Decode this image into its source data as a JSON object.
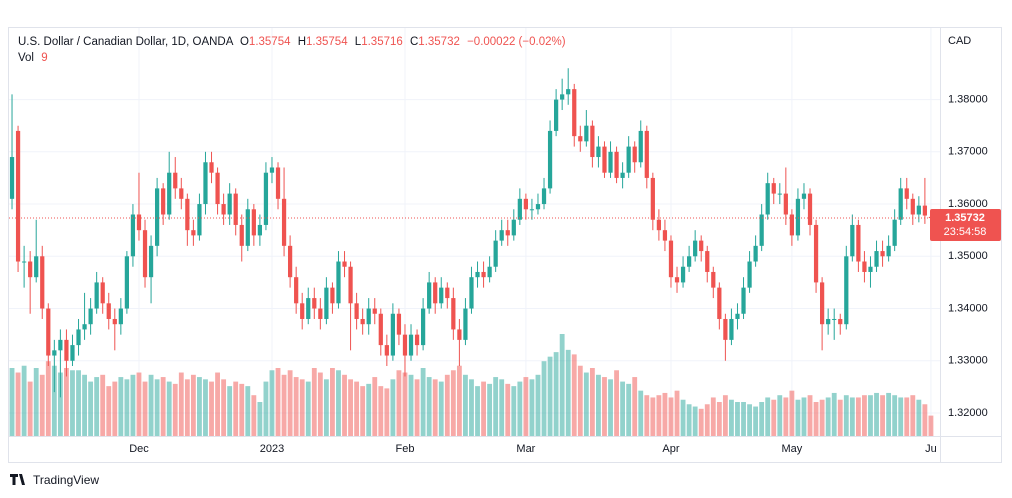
{
  "chart_data": {
    "type": "candlestick",
    "title": "U.S. Dollar / Canadian Dollar, 1D, OANDA",
    "ohlc_labels": [
      "O",
      "H",
      "L",
      "C"
    ],
    "change_text": "−0.00022 (−0.02%)",
    "volume_label": "Vol",
    "currency": "CAD",
    "countdown": "23:54:58",
    "brand": "TradingView",
    "up_color": "#26a69a",
    "down_color": "#ef5350",
    "open": [
      1.361,
      1.374,
      1.349,
      1.349,
      1.346,
      1.35,
      1.34,
      1.331,
      1.332,
      1.334,
      1.33,
      1.333,
      1.336,
      1.337,
      1.34,
      1.345,
      1.341,
      1.338,
      1.337,
      1.34,
      1.35,
      1.358,
      1.355,
      1.346,
      1.352,
      1.363,
      1.358,
      1.366,
      1.363,
      1.361,
      1.355,
      1.354,
      1.36,
      1.368,
      1.366,
      1.36,
      1.358,
      1.362,
      1.356,
      1.352,
      1.359,
      1.354,
      1.356,
      1.366,
      1.367,
      1.361,
      1.352,
      1.346,
      1.341,
      1.338,
      1.342,
      1.34,
      1.338,
      1.344,
      1.341,
      1.349,
      1.348,
      1.341,
      1.338,
      1.337,
      1.34,
      1.339,
      1.333,
      1.331,
      1.339,
      1.335,
      1.331,
      1.335,
      1.333,
      1.34,
      1.345,
      1.341,
      1.344,
      1.342,
      1.336,
      1.334,
      1.34,
      1.346,
      1.347,
      1.346,
      1.348,
      1.353,
      1.355,
      1.354,
      1.357,
      1.361,
      1.359,
      1.359,
      1.36,
      1.363,
      1.374,
      1.38,
      1.381,
      1.382,
      1.373,
      1.372,
      1.375,
      1.369,
      1.371,
      1.366,
      1.37,
      1.365,
      1.366,
      1.371,
      1.368,
      1.374,
      1.365,
      1.357,
      1.355,
      1.353,
      1.346,
      1.345,
      1.348,
      1.35,
      1.353,
      1.351,
      1.347,
      1.344,
      1.338,
      1.334,
      1.338,
      1.339,
      1.344,
      1.349,
      1.352,
      1.358,
      1.364,
      1.362,
      1.362,
      1.358,
      1.354,
      1.361,
      1.362,
      1.356,
      1.345,
      1.337,
      1.338,
      1.338,
      1.337,
      1.35,
      1.356,
      1.349,
      1.347,
      1.348,
      1.351,
      1.35,
      1.352,
      1.357,
      1.363,
      1.361,
      1.358,
      1.3597,
      1.35754
    ],
    "high": [
      1.381,
      1.375,
      1.352,
      1.351,
      1.357,
      1.352,
      1.341,
      1.334,
      1.336,
      1.336,
      1.335,
      1.338,
      1.343,
      1.342,
      1.347,
      1.346,
      1.343,
      1.34,
      1.342,
      1.351,
      1.36,
      1.366,
      1.357,
      1.354,
      1.365,
      1.364,
      1.37,
      1.369,
      1.365,
      1.362,
      1.357,
      1.362,
      1.37,
      1.37,
      1.367,
      1.362,
      1.364,
      1.363,
      1.358,
      1.361,
      1.36,
      1.358,
      1.368,
      1.369,
      1.368,
      1.367,
      1.354,
      1.348,
      1.343,
      1.344,
      1.344,
      1.342,
      1.346,
      1.345,
      1.351,
      1.351,
      1.349,
      1.343,
      1.34,
      1.342,
      1.342,
      1.34,
      1.335,
      1.341,
      1.34,
      1.337,
      1.337,
      1.336,
      1.342,
      1.347,
      1.346,
      1.346,
      1.345,
      1.344,
      1.338,
      1.342,
      1.348,
      1.349,
      1.349,
      1.35,
      1.355,
      1.357,
      1.357,
      1.359,
      1.363,
      1.362,
      1.361,
      1.362,
      1.365,
      1.376,
      1.382,
      1.384,
      1.386,
      1.383,
      1.375,
      1.378,
      1.376,
      1.373,
      1.372,
      1.372,
      1.371,
      1.368,
      1.373,
      1.372,
      1.376,
      1.375,
      1.366,
      1.359,
      1.357,
      1.354,
      1.348,
      1.35,
      1.352,
      1.355,
      1.354,
      1.352,
      1.348,
      1.345,
      1.339,
      1.34,
      1.341,
      1.346,
      1.351,
      1.354,
      1.36,
      1.366,
      1.365,
      1.364,
      1.367,
      1.359,
      1.363,
      1.364,
      1.363,
      1.357,
      1.346,
      1.34,
      1.34,
      1.339,
      1.352,
      1.358,
      1.357,
      1.351,
      1.35,
      1.353,
      1.353,
      1.354,
      1.359,
      1.365,
      1.365,
      1.362,
      1.3615,
      1.365,
      1.35754
    ],
    "low": [
      1.359,
      1.347,
      1.344,
      1.339,
      1.345,
      1.338,
      1.329,
      1.324,
      1.323,
      1.327,
      1.329,
      1.331,
      1.334,
      1.335,
      1.339,
      1.339,
      1.336,
      1.332,
      1.335,
      1.339,
      1.348,
      1.353,
      1.344,
      1.341,
      1.35,
      1.356,
      1.357,
      1.361,
      1.359,
      1.352,
      1.352,
      1.353,
      1.358,
      1.364,
      1.358,
      1.356,
      1.356,
      1.354,
      1.349,
      1.351,
      1.352,
      1.352,
      1.355,
      1.364,
      1.359,
      1.35,
      1.344,
      1.339,
      1.336,
      1.337,
      1.338,
      1.336,
      1.337,
      1.339,
      1.34,
      1.346,
      1.332,
      1.336,
      1.335,
      1.335,
      1.337,
      1.331,
      1.329,
      1.33,
      1.333,
      1.327,
      1.33,
      1.331,
      1.332,
      1.339,
      1.339,
      1.34,
      1.34,
      1.334,
      1.329,
      1.333,
      1.339,
      1.344,
      1.344,
      1.345,
      1.347,
      1.352,
      1.352,
      1.353,
      1.356,
      1.357,
      1.357,
      1.358,
      1.359,
      1.362,
      1.373,
      1.378,
      1.379,
      1.371,
      1.37,
      1.371,
      1.367,
      1.367,
      1.365,
      1.365,
      1.364,
      1.363,
      1.365,
      1.366,
      1.367,
      1.363,
      1.355,
      1.353,
      1.351,
      1.344,
      1.343,
      1.344,
      1.347,
      1.349,
      1.349,
      1.345,
      1.342,
      1.336,
      1.33,
      1.333,
      1.336,
      1.338,
      1.343,
      1.348,
      1.351,
      1.357,
      1.36,
      1.36,
      1.356,
      1.352,
      1.353,
      1.359,
      1.354,
      1.343,
      1.332,
      1.335,
      1.334,
      1.335,
      1.336,
      1.349,
      1.347,
      1.345,
      1.344,
      1.347,
      1.348,
      1.349,
      1.351,
      1.356,
      1.359,
      1.356,
      1.3565,
      1.3562,
      1.35716
    ],
    "close": [
      1.369,
      1.349,
      1.349,
      1.346,
      1.35,
      1.34,
      1.331,
      1.332,
      1.334,
      1.33,
      1.333,
      1.336,
      1.337,
      1.34,
      1.345,
      1.341,
      1.338,
      1.337,
      1.34,
      1.35,
      1.358,
      1.355,
      1.346,
      1.352,
      1.363,
      1.358,
      1.366,
      1.363,
      1.361,
      1.355,
      1.354,
      1.36,
      1.368,
      1.366,
      1.36,
      1.358,
      1.362,
      1.356,
      1.352,
      1.359,
      1.354,
      1.356,
      1.366,
      1.367,
      1.361,
      1.352,
      1.346,
      1.341,
      1.338,
      1.342,
      1.34,
      1.338,
      1.344,
      1.341,
      1.349,
      1.348,
      1.341,
      1.338,
      1.337,
      1.34,
      1.339,
      1.333,
      1.331,
      1.339,
      1.335,
      1.331,
      1.335,
      1.333,
      1.34,
      1.345,
      1.341,
      1.344,
      1.342,
      1.336,
      1.334,
      1.34,
      1.346,
      1.347,
      1.346,
      1.348,
      1.353,
      1.355,
      1.354,
      1.357,
      1.361,
      1.359,
      1.359,
      1.36,
      1.363,
      1.374,
      1.38,
      1.381,
      1.382,
      1.373,
      1.372,
      1.375,
      1.369,
      1.371,
      1.366,
      1.37,
      1.365,
      1.366,
      1.371,
      1.368,
      1.374,
      1.365,
      1.357,
      1.355,
      1.353,
      1.346,
      1.345,
      1.348,
      1.35,
      1.353,
      1.351,
      1.347,
      1.344,
      1.338,
      1.334,
      1.338,
      1.339,
      1.344,
      1.349,
      1.352,
      1.358,
      1.364,
      1.362,
      1.362,
      1.358,
      1.354,
      1.361,
      1.362,
      1.356,
      1.345,
      1.337,
      1.338,
      1.338,
      1.337,
      1.35,
      1.356,
      1.349,
      1.347,
      1.348,
      1.351,
      1.35,
      1.352,
      1.357,
      1.363,
      1.361,
      1.358,
      1.3597,
      1.3578,
      1.35732
    ],
    "volume": [
      30,
      28,
      31,
      24,
      30,
      27,
      33,
      31,
      28,
      30,
      29,
      29,
      27,
      24,
      26,
      27,
      22,
      24,
      26,
      25,
      27,
      28,
      24,
      27,
      25,
      26,
      24,
      23,
      28,
      25,
      27,
      26,
      25,
      24,
      28,
      25,
      22,
      24,
      23,
      22,
      18,
      15,
      24,
      29,
      30,
      27,
      29,
      26,
      25,
      24,
      30,
      28,
      25,
      30,
      29,
      27,
      25,
      24,
      22,
      23,
      26,
      22,
      21,
      25,
      29,
      28,
      27,
      25,
      30,
      26,
      25,
      24,
      27,
      29,
      31,
      27,
      25,
      22,
      24,
      23,
      26,
      25,
      23,
      22,
      24,
      26,
      25,
      27,
      33,
      35,
      37,
      45,
      38,
      36,
      31,
      28,
      30,
      27,
      26,
      25,
      29,
      24,
      23,
      26,
      20,
      18,
      17,
      18,
      19,
      17,
      20,
      16,
      14,
      13,
      12,
      14,
      17,
      15,
      18,
      16,
      15,
      15,
      14,
      13,
      15,
      17,
      16,
      18,
      17,
      20,
      16,
      17,
      18,
      15,
      16,
      17,
      19,
      16,
      18,
      17,
      17,
      18,
      18,
      19,
      18,
      19,
      18,
      17,
      17,
      18,
      16,
      14,
      9
    ],
    "xlim": [
      -0.5,
      153.5
    ],
    "xticks": [
      {
        "value": 21,
        "label": "Dec"
      },
      {
        "value": 43,
        "label": "2023"
      },
      {
        "value": 65,
        "label": "Feb"
      },
      {
        "value": 85,
        "label": "Mar"
      },
      {
        "value": 109,
        "label": "Apr"
      },
      {
        "value": 129,
        "label": "May"
      },
      {
        "value": 152,
        "label": "Ju"
      }
    ],
    "ylim": [
      1.3156,
      1.3937
    ],
    "yticks": [
      {
        "value": 1.32,
        "label": "1.32000"
      },
      {
        "value": 1.33,
        "label": "1.33000"
      },
      {
        "value": 1.34,
        "label": "1.34000"
      },
      {
        "value": 1.35,
        "label": "1.35000"
      },
      {
        "value": 1.36,
        "label": "1.36000"
      },
      {
        "value": 1.37,
        "label": "1.37000"
      },
      {
        "value": 1.38,
        "label": "1.38000"
      }
    ],
    "grid": true
  }
}
